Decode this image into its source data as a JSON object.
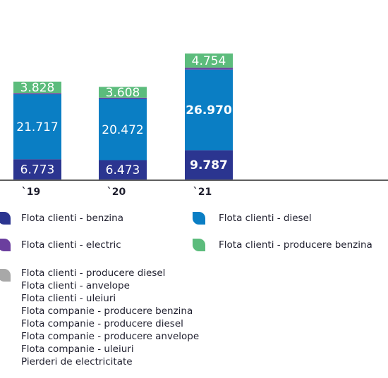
{
  "chart_data": {
    "type": "bar",
    "stacked": true,
    "categories": [
      "`19",
      "`20",
      "`21"
    ],
    "series": [
      {
        "name": "Flota clienti - benzina",
        "color": "#2b3590",
        "values": [
          6773,
          6473,
          9787
        ],
        "labels": [
          "6.773",
          "6.473",
          "9.787"
        ]
      },
      {
        "name": "Flota clienti - diesel",
        "color": "#0a7ec4",
        "values": [
          21717,
          20472,
          26970
        ],
        "labels": [
          "21.717",
          "20.472",
          "26.970"
        ]
      },
      {
        "name": "Flota clienti - electric",
        "color": "#6b3f9e",
        "values": [
          400,
          400,
          600
        ],
        "labels": [
          "",
          "",
          ""
        ]
      },
      {
        "name": "Flota clienti - producere benzina",
        "color": "#5cbc7c",
        "values": [
          3828,
          3608,
          4754
        ],
        "labels": [
          "3.828",
          "3.608",
          "4.754"
        ]
      }
    ],
    "grey_group": {
      "color": "#a8a8a8",
      "names": [
        "Flota clienti - producere diesel",
        "Flota clienti - anvelope",
        "Flota clienti - uleiuri",
        "Flota companie - producere benzina",
        "Flota companie - producere diesel",
        "Flota companie - producere anvelope",
        "Flota companie - uleiuri",
        "Pierderi de electricitate"
      ]
    },
    "legend_position": "bottom",
    "grid": false
  }
}
